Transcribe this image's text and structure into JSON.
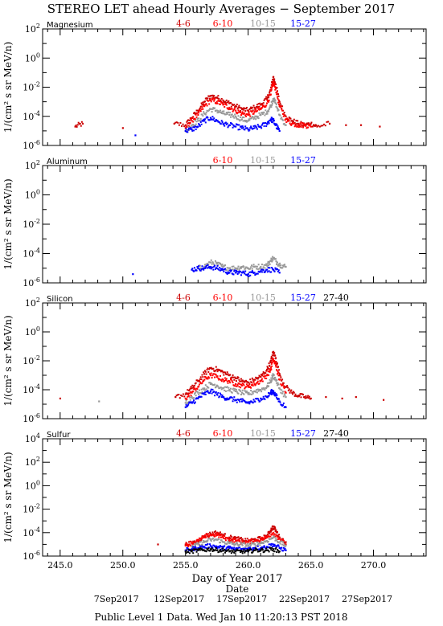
{
  "title": "STEREO LET ahead Hourly Averages − September 2017",
  "footer": "Public Level 1 Data. Wed Jan 10 11:20:13 PST 2018",
  "x_axis": {
    "label": "Day of Year 2017",
    "sublabel": "Date",
    "range": [
      243.6,
      274.2
    ],
    "ticks": [
      "245.0",
      "250.0",
      "255.0",
      "260.0",
      "265.0",
      "270.0"
    ],
    "tick_values": [
      245,
      250,
      255,
      260,
      265,
      270
    ],
    "date_labels": [
      "7Sep2017",
      "12Sep2017",
      "17Sep2017",
      "22Sep2017",
      "27Sep2017"
    ],
    "date_doys": [
      250,
      255,
      260,
      265,
      270
    ]
  },
  "colors": {
    "4-6": "#cc0000",
    "6-10": "#ff0000",
    "10-15": "#999999",
    "15-27": "#0000ff",
    "27-40": "#000000",
    "topsample": "#8b0000"
  },
  "chart_data": [
    {
      "type": "scatter",
      "element": "Magnesium",
      "ylabel": "1/(cm² s sr MeV/n)",
      "yscale": "log",
      "ylim_exp": [
        -6,
        2
      ],
      "ytick_exponents": [
        -6,
        -4,
        -2,
        0,
        2
      ],
      "legend": [
        "4-6",
        "6-10",
        "10-15",
        "15-27"
      ],
      "series": [
        {
          "name": "4-6",
          "x": [
            246.2,
            246.8,
            250.0,
            254.1,
            255.0,
            255.5,
            256.0,
            256.5,
            257.0,
            257.5,
            258.0,
            258.5,
            259.0,
            259.5,
            260.0,
            260.5,
            261.0,
            261.5,
            261.8,
            262.0,
            262.2,
            262.5,
            263.0,
            263.5,
            264.0,
            264.5,
            265.0,
            265.5,
            266.5,
            267.8,
            269.0,
            270.5
          ],
          "y": [
            -4.7,
            -4.5,
            -4.8,
            -4.5,
            -4.6,
            -4.1,
            -3.6,
            -3.0,
            -2.6,
            -2.7,
            -2.9,
            -3.1,
            -3.3,
            -3.5,
            -3.6,
            -3.4,
            -3.2,
            -2.8,
            -2.2,
            -1.3,
            -1.8,
            -3.0,
            -4.0,
            -4.3,
            -4.5,
            -4.6,
            -4.5,
            -4.7,
            -4.5,
            -4.6,
            -4.6,
            -4.7
          ]
        },
        {
          "name": "6-10",
          "x": [
            255.0,
            255.5,
            256.0,
            256.5,
            257.0,
            257.5,
            258.0,
            258.5,
            259.0,
            259.5,
            260.0,
            260.5,
            261.0,
            261.5,
            261.8,
            262.0,
            262.2,
            262.5,
            263.0,
            263.5,
            264.0,
            264.5,
            265.0
          ],
          "y": [
            -4.8,
            -4.3,
            -3.9,
            -3.3,
            -2.9,
            -3.0,
            -3.2,
            -3.4,
            -3.6,
            -3.8,
            -3.9,
            -3.7,
            -3.5,
            -3.1,
            -2.5,
            -1.7,
            -2.1,
            -3.3,
            -4.2,
            -4.5,
            -4.6,
            -4.6,
            -4.7
          ]
        },
        {
          "name": "10-15",
          "x": [
            255.0,
            255.5,
            256.0,
            256.5,
            257.0,
            257.5,
            258.0,
            258.5,
            259.0,
            259.5,
            260.0,
            260.5,
            261.0,
            261.5,
            261.8,
            262.0,
            262.2,
            262.5,
            263.0
          ],
          "y": [
            -5.0,
            -4.6,
            -4.3,
            -3.8,
            -3.5,
            -3.6,
            -3.8,
            -3.9,
            -4.0,
            -4.2,
            -4.3,
            -4.1,
            -3.9,
            -3.7,
            -3.3,
            -2.8,
            -3.1,
            -3.9,
            -4.6
          ]
        },
        {
          "name": "15-27",
          "x": [
            251.0,
            255.0,
            255.5,
            256.0,
            256.5,
            257.0,
            257.5,
            258.0,
            258.5,
            259.0,
            259.5,
            260.0,
            260.5,
            261.0,
            261.5,
            261.8,
            262.0,
            262.2,
            262.5
          ],
          "y": [
            -5.3,
            -5.0,
            -4.9,
            -4.7,
            -4.3,
            -4.1,
            -4.3,
            -4.5,
            -4.6,
            -4.7,
            -4.8,
            -4.9,
            -4.8,
            -4.7,
            -4.5,
            -4.2,
            -4.3,
            -4.6,
            -5.0
          ]
        }
      ]
    },
    {
      "type": "scatter",
      "element": "Aluminum",
      "ylabel": "1/(cm² s sr MeV/n)",
      "yscale": "log",
      "ylim_exp": [
        -6,
        2
      ],
      "ytick_exponents": [
        -6,
        -4,
        -2,
        0,
        2
      ],
      "legend": [
        "6-10",
        "10-15",
        "15-27"
      ],
      "series": [
        {
          "name": "10-15",
          "x": [
            256.0,
            256.5,
            257.0,
            257.5,
            258.0,
            258.5,
            259.0,
            259.5,
            260.0,
            260.5,
            261.0,
            261.5,
            261.8,
            262.0,
            262.3,
            262.6,
            263.0
          ],
          "y": [
            -5.0,
            -4.9,
            -4.6,
            -4.7,
            -4.9,
            -5.0,
            -5.0,
            -4.9,
            -5.0,
            -4.9,
            -4.9,
            -4.8,
            -4.5,
            -4.3,
            -4.6,
            -4.8,
            -4.9
          ]
        },
        {
          "name": "15-27",
          "x": [
            250.8,
            255.5,
            256.0,
            256.5,
            257.0,
            257.5,
            258.0,
            258.5,
            259.0,
            259.5,
            260.0,
            260.5,
            261.0,
            261.5,
            262.0,
            262.5
          ],
          "y": [
            -5.4,
            -5.1,
            -5.0,
            -5.0,
            -4.9,
            -5.0,
            -5.1,
            -5.3,
            -5.3,
            -5.3,
            -5.4,
            -5.3,
            -5.2,
            -5.1,
            -5.1,
            -5.3
          ]
        }
      ]
    },
    {
      "type": "scatter",
      "element": "Silicon",
      "ylabel": "1/(cm² s sr MeV/n)",
      "yscale": "log",
      "ylim_exp": [
        -6,
        2
      ],
      "ytick_exponents": [
        -6,
        -4,
        -2,
        0,
        2
      ],
      "legend": [
        "4-6",
        "6-10",
        "10-15",
        "15-27",
        "27-40"
      ],
      "series": [
        {
          "name": "4-6",
          "x": [
            245.0,
            254.2,
            255.0,
            255.5,
            256.0,
            256.5,
            257.0,
            257.5,
            258.0,
            258.5,
            259.0,
            259.5,
            260.0,
            260.5,
            261.0,
            261.5,
            261.8,
            262.0,
            262.2,
            262.5,
            263.0,
            263.5,
            264.0,
            264.5,
            265.0,
            266.2,
            267.5,
            268.6,
            270.8
          ],
          "y": [
            -4.6,
            -4.5,
            -4.3,
            -3.9,
            -3.4,
            -2.9,
            -2.5,
            -2.6,
            -2.8,
            -3.0,
            -3.2,
            -3.4,
            -3.5,
            -3.3,
            -3.1,
            -2.6,
            -2.1,
            -1.4,
            -1.8,
            -2.9,
            -3.8,
            -4.2,
            -4.4,
            -4.5,
            -4.6,
            -4.5,
            -4.6,
            -4.5,
            -4.7
          ]
        },
        {
          "name": "6-10",
          "x": [
            255.0,
            255.5,
            256.0,
            256.5,
            257.0,
            257.5,
            258.0,
            258.5,
            259.0,
            259.5,
            260.0,
            260.5,
            261.0,
            261.5,
            261.8,
            262.0,
            262.2,
            262.5,
            263.0
          ],
          "y": [
            -4.6,
            -4.2,
            -3.8,
            -3.3,
            -3.0,
            -3.1,
            -3.3,
            -3.4,
            -3.6,
            -3.7,
            -3.8,
            -3.6,
            -3.4,
            -3.0,
            -2.6,
            -1.9,
            -2.3,
            -3.3,
            -4.2
          ]
        },
        {
          "name": "10-15",
          "x": [
            248.1,
            255.0,
            255.5,
            256.0,
            256.5,
            257.0,
            257.5,
            258.0,
            258.5,
            259.0,
            259.5,
            260.0,
            260.5,
            261.0,
            261.5,
            261.8,
            262.0,
            262.2,
            262.5,
            263.0
          ],
          "y": [
            -4.8,
            -4.9,
            -4.5,
            -4.2,
            -3.9,
            -3.6,
            -3.7,
            -3.9,
            -4.0,
            -4.1,
            -4.2,
            -4.3,
            -4.1,
            -4.0,
            -3.8,
            -3.4,
            -3.0,
            -3.3,
            -3.9,
            -4.5
          ]
        },
        {
          "name": "15-27",
          "x": [
            255.0,
            255.5,
            256.0,
            256.5,
            257.0,
            257.5,
            258.0,
            258.5,
            259.0,
            259.5,
            260.0,
            260.5,
            261.0,
            261.5,
            261.8,
            262.0,
            262.2,
            262.5,
            263.0
          ],
          "y": [
            -5.2,
            -4.9,
            -4.6,
            -4.3,
            -4.1,
            -4.3,
            -4.5,
            -4.6,
            -4.7,
            -4.8,
            -4.9,
            -4.8,
            -4.6,
            -4.5,
            -4.2,
            -4.1,
            -4.4,
            -4.8,
            -5.2
          ]
        }
      ]
    },
    {
      "type": "scatter",
      "element": "Sulfur",
      "ylabel": "1/(cm² s sr MeV/n)",
      "yscale": "log",
      "ylim_exp": [
        -6,
        4
      ],
      "ytick_exponents": [
        -6,
        -4,
        -2,
        0,
        2,
        4
      ],
      "legend": [
        "4-6",
        "6-10",
        "10-15",
        "15-27",
        "27-40"
      ],
      "series": [
        {
          "name": "4-6",
          "x": [
            252.8,
            255.0,
            255.5,
            256.0,
            256.5,
            257.0,
            257.5,
            258.0,
            258.5,
            259.0,
            259.5,
            260.0,
            260.5,
            261.0,
            261.5,
            261.8,
            262.0,
            262.2,
            262.5,
            263.0
          ],
          "y": [
            -5.0,
            -5.0,
            -4.9,
            -4.7,
            -4.3,
            -4.1,
            -4.0,
            -4.2,
            -4.4,
            -4.5,
            -4.6,
            -4.7,
            -4.6,
            -4.5,
            -4.3,
            -3.8,
            -3.5,
            -3.8,
            -4.4,
            -4.8
          ]
        },
        {
          "name": "6-10",
          "x": [
            255.0,
            255.5,
            256.0,
            256.5,
            257.0,
            257.5,
            258.0,
            258.5,
            259.0,
            259.5,
            260.0,
            260.5,
            261.0,
            261.5,
            262.0,
            262.5,
            263.0
          ],
          "y": [
            -5.1,
            -4.9,
            -4.7,
            -4.4,
            -4.2,
            -4.2,
            -4.4,
            -4.6,
            -4.7,
            -4.8,
            -4.8,
            -4.7,
            -4.6,
            -4.4,
            -4.0,
            -4.5,
            -5.0
          ]
        },
        {
          "name": "10-15",
          "x": [
            255.5,
            256.0,
            256.5,
            257.0,
            257.5,
            258.0,
            258.5,
            259.0,
            259.5,
            260.0,
            260.5,
            261.0,
            261.5,
            262.0,
            262.5,
            263.0
          ],
          "y": [
            -5.2,
            -5.0,
            -4.8,
            -4.6,
            -4.6,
            -4.8,
            -4.9,
            -5.0,
            -5.0,
            -5.1,
            -5.0,
            -4.9,
            -4.7,
            -4.4,
            -4.8,
            -5.1
          ]
        },
        {
          "name": "15-27",
          "x": [
            255.0,
            255.5,
            256.0,
            256.5,
            257.0,
            257.5,
            258.0,
            258.5,
            259.0,
            259.5,
            260.0,
            260.5,
            261.0,
            261.5,
            262.0,
            262.5,
            263.0
          ],
          "y": [
            -5.5,
            -5.4,
            -5.3,
            -5.2,
            -5.1,
            -5.2,
            -5.3,
            -5.3,
            -5.4,
            -5.4,
            -5.4,
            -5.3,
            -5.3,
            -5.2,
            -5.0,
            -5.3,
            -5.5
          ]
        },
        {
          "name": "27-40",
          "x": [
            255.0,
            255.5,
            256.0,
            256.5,
            257.0,
            257.5,
            258.0,
            258.5,
            259.0,
            259.5,
            260.0,
            260.5,
            261.0,
            261.5,
            262.0,
            262.5
          ],
          "y": [
            -5.6,
            -5.6,
            -5.5,
            -5.5,
            -5.4,
            -5.5,
            -5.5,
            -5.6,
            -5.6,
            -5.6,
            -5.6,
            -5.5,
            -5.5,
            -5.5,
            -5.4,
            -5.6
          ]
        }
      ]
    }
  ]
}
